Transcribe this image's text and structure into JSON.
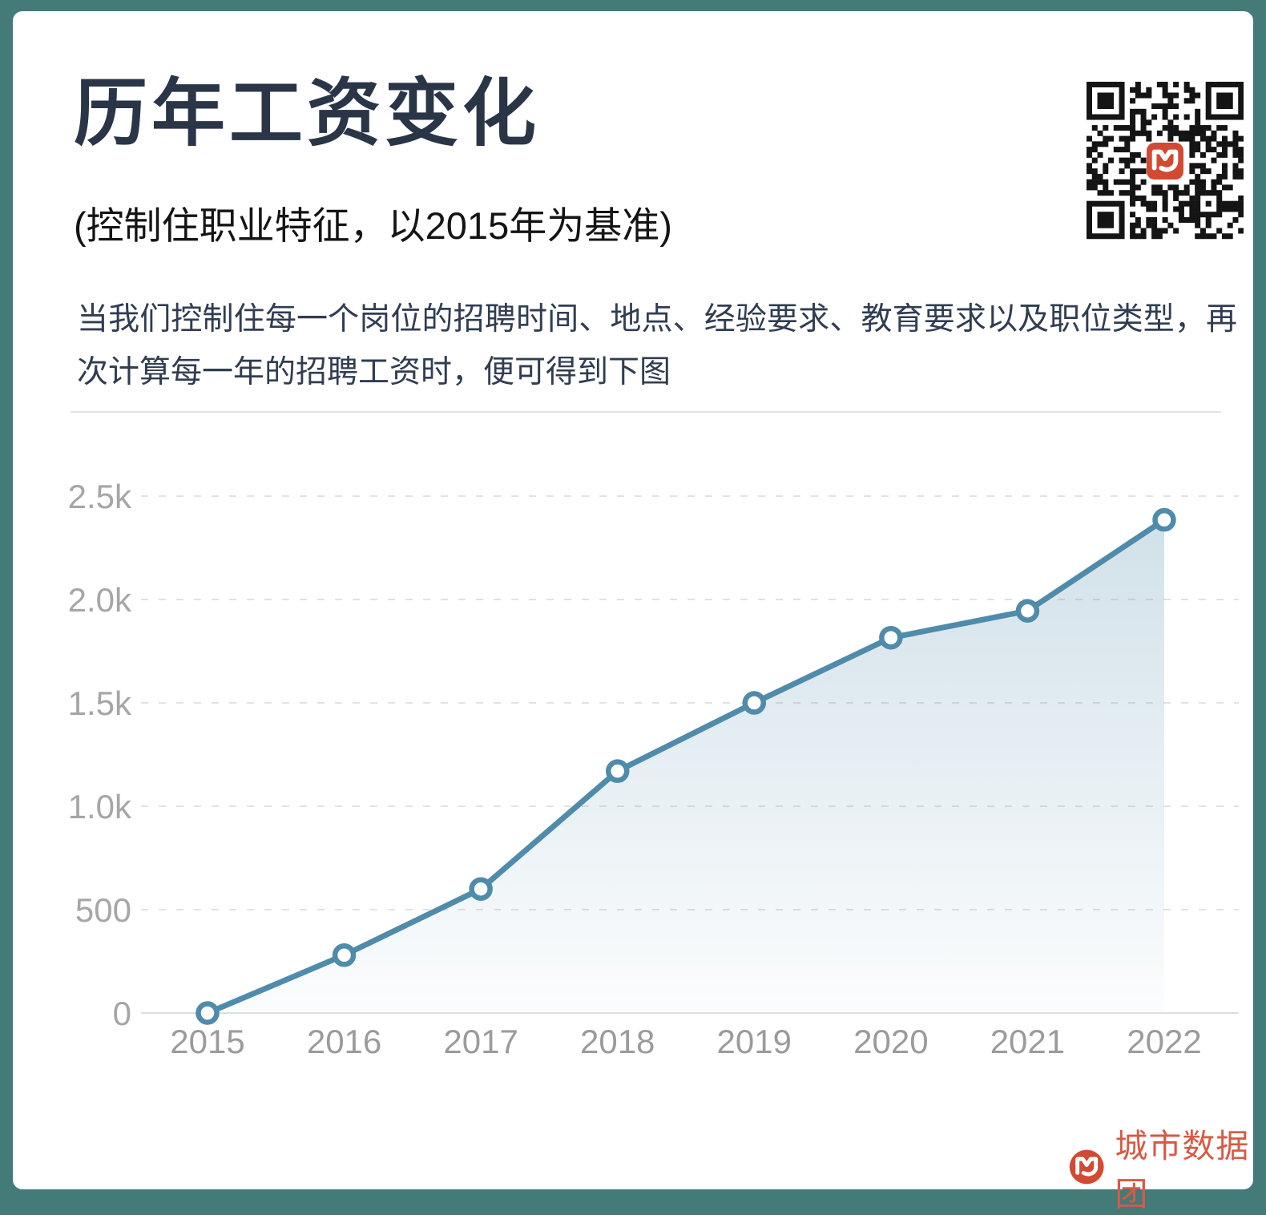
{
  "card": {
    "background": "#ffffff",
    "frame_color": "#447a78"
  },
  "header": {
    "title": "历年工资变化",
    "subtitle": "(控制住职业特征，以2015年为基准)",
    "description": "当我们控制住每一个岗位的招聘时间、地点、经验要求、教育要求以及职位类型，再次计算每一年的招聘工资时，便可得到下图"
  },
  "chart_data": {
    "type": "area",
    "categories": [
      "2015",
      "2016",
      "2017",
      "2018",
      "2019",
      "2020",
      "2021",
      "2022"
    ],
    "values": [
      0,
      280,
      600,
      1170,
      1500,
      1815,
      1945,
      2385
    ],
    "y_ticks": [
      {
        "label": "2.5k",
        "value": 2500
      },
      {
        "label": "2.0k",
        "value": 2000
      },
      {
        "label": "1.5k",
        "value": 1500
      },
      {
        "label": "1.0k",
        "value": 1000
      },
      {
        "label": "500",
        "value": 500
      },
      {
        "label": "0",
        "value": 0
      }
    ],
    "ylim": [
      0,
      2500
    ],
    "grid": "dashed-horizontal",
    "legend": "none",
    "line_color": "#4f8bab",
    "marker": "open-circle",
    "area_fill": "vertical-gradient-blue"
  },
  "qr": {
    "name": "qr-code",
    "module_color": "#141414",
    "center_logo_color": "#d24a32"
  },
  "footer": {
    "brand_label": "城市数据团",
    "brand_color": "#d75a45"
  }
}
